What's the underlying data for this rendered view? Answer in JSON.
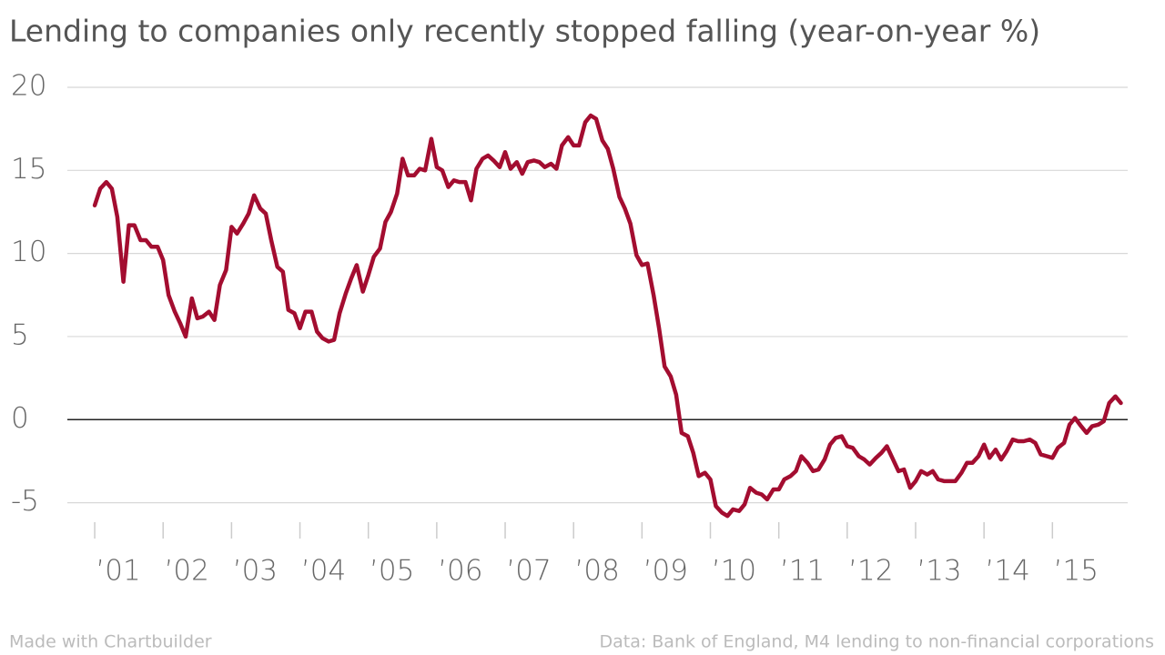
{
  "chart_data": {
    "type": "line",
    "title": "Lending to companies only recently stopped falling (year-on-year %)",
    "credit": "Made with Chartbuilder",
    "source": "Data: Bank of England, M4 lending to non-financial corporations",
    "x": [
      2001.0,
      2001.08,
      2001.17,
      2001.25,
      2001.33,
      2001.42,
      2001.5,
      2001.58,
      2001.67,
      2001.75,
      2001.83,
      2001.92,
      2002.0,
      2002.08,
      2002.17,
      2002.25,
      2002.33,
      2002.42,
      2002.5,
      2002.58,
      2002.67,
      2002.75,
      2002.83,
      2002.92,
      2003.0,
      2003.08,
      2003.17,
      2003.25,
      2003.33,
      2003.42,
      2003.5,
      2003.58,
      2003.67,
      2003.75,
      2003.83,
      2003.92,
      2004.0,
      2004.08,
      2004.17,
      2004.25,
      2004.33,
      2004.42,
      2004.5,
      2004.58,
      2004.67,
      2004.75,
      2004.83,
      2004.92,
      2005.0,
      2005.08,
      2005.17,
      2005.25,
      2005.33,
      2005.42,
      2005.5,
      2005.58,
      2005.67,
      2005.75,
      2005.83,
      2005.92,
      2006.0,
      2006.08,
      2006.17,
      2006.25,
      2006.33,
      2006.42,
      2006.5,
      2006.58,
      2006.67,
      2006.75,
      2006.83,
      2006.92,
      2007.0,
      2007.08,
      2007.17,
      2007.25,
      2007.33,
      2007.42,
      2007.5,
      2007.58,
      2007.67,
      2007.75,
      2007.83,
      2007.92,
      2008.0,
      2008.08,
      2008.17,
      2008.25,
      2008.33,
      2008.42,
      2008.5,
      2008.58,
      2008.67,
      2008.75,
      2008.83,
      2008.92,
      2009.0,
      2009.08,
      2009.17,
      2009.25,
      2009.33,
      2009.42,
      2009.5,
      2009.58,
      2009.67,
      2009.75,
      2009.83,
      2009.92,
      2010.0,
      2010.08,
      2010.17,
      2010.25,
      2010.33,
      2010.42,
      2010.5,
      2010.58,
      2010.67,
      2010.75,
      2010.83,
      2010.92,
      2011.0,
      2011.08,
      2011.17,
      2011.25,
      2011.33,
      2011.42,
      2011.5,
      2011.58,
      2011.67,
      2011.75,
      2011.83,
      2011.92,
      2012.0,
      2012.08,
      2012.17,
      2012.25,
      2012.33,
      2012.42,
      2012.5,
      2012.58,
      2012.67,
      2012.75,
      2012.83,
      2012.92,
      2013.0,
      2013.08,
      2013.17,
      2013.25,
      2013.33,
      2013.42,
      2013.5,
      2013.58,
      2013.67,
      2013.75,
      2013.83,
      2013.92,
      2014.0,
      2014.08,
      2014.17,
      2014.25,
      2014.33,
      2014.42,
      2014.5,
      2014.58,
      2014.67,
      2014.75,
      2014.83,
      2014.92,
      2015.0,
      2015.08,
      2015.17,
      2015.25,
      2015.33,
      2015.42,
      2015.5,
      2015.58,
      2015.67,
      2015.75,
      2015.83,
      2015.92,
      2016.0
    ],
    "series": [
      {
        "name": "M4 lending to non-financial corporations",
        "color": "#a30d30",
        "values": [
          12.9,
          13.9,
          14.3,
          13.9,
          12.2,
          8.3,
          11.7,
          11.7,
          10.8,
          10.8,
          10.4,
          10.4,
          9.6,
          7.5,
          6.5,
          5.8,
          5.0,
          7.3,
          6.1,
          6.2,
          6.5,
          6.0,
          8.1,
          9.0,
          11.6,
          11.2,
          11.8,
          12.4,
          13.5,
          12.7,
          12.4,
          10.8,
          9.2,
          8.9,
          6.6,
          6.4,
          5.5,
          6.5,
          6.5,
          5.3,
          4.9,
          4.7,
          4.8,
          6.4,
          7.6,
          8.5,
          9.3,
          7.7,
          8.7,
          9.8,
          10.3,
          11.9,
          12.5,
          13.6,
          15.7,
          14.7,
          14.7,
          15.1,
          15.0,
          16.9,
          15.2,
          15.0,
          14.0,
          14.4,
          14.3,
          14.3,
          13.2,
          15.1,
          15.7,
          15.9,
          15.6,
          15.2,
          16.1,
          15.1,
          15.5,
          14.8,
          15.5,
          15.6,
          15.5,
          15.2,
          15.4,
          15.1,
          16.5,
          17.0,
          16.5,
          16.5,
          17.9,
          18.3,
          18.1,
          16.8,
          16.3,
          15.1,
          13.4,
          12.7,
          11.8,
          9.9,
          9.3,
          9.4,
          7.5,
          5.5,
          3.2,
          2.6,
          1.5,
          -0.8,
          -1.0,
          -2.0,
          -3.4,
          -3.2,
          -3.6,
          -5.2,
          -5.6,
          -5.8,
          -5.4,
          -5.5,
          -5.1,
          -4.1,
          -4.4,
          -4.5,
          -4.8,
          -4.2,
          -4.2,
          -3.6,
          -3.4,
          -3.1,
          -2.2,
          -2.6,
          -3.1,
          -3.0,
          -2.4,
          -1.5,
          -1.1,
          -1.0,
          -1.6,
          -1.7,
          -2.2,
          -2.4,
          -2.7,
          -2.3,
          -2.0,
          -1.6,
          -2.4,
          -3.1,
          -3.0,
          -4.1,
          -3.7,
          -3.1,
          -3.3,
          -3.1,
          -3.6,
          -3.7,
          -3.7,
          -3.7,
          -3.2,
          -2.6,
          -2.6,
          -2.2,
          -1.5,
          -2.3,
          -1.8,
          -2.4,
          -1.9,
          -1.2,
          -1.3,
          -1.3,
          -1.2,
          -1.4,
          -2.1,
          -2.2,
          -2.3,
          -1.7,
          -1.4,
          -0.3,
          0.1,
          -0.4,
          -0.8,
          -0.4,
          -0.3,
          -0.1,
          1.0,
          1.4,
          1.0
        ]
      }
    ],
    "xlim": [
      2000.6,
      2016.1
    ],
    "xticks": [
      {
        "value": 2001,
        "label": "’01"
      },
      {
        "value": 2002,
        "label": "’02"
      },
      {
        "value": 2003,
        "label": "’03"
      },
      {
        "value": 2004,
        "label": "’04"
      },
      {
        "value": 2005,
        "label": "’05"
      },
      {
        "value": 2006,
        "label": "’06"
      },
      {
        "value": 2007,
        "label": "’07"
      },
      {
        "value": 2008,
        "label": "’08"
      },
      {
        "value": 2009,
        "label": "’09"
      },
      {
        "value": 2010,
        "label": "’10"
      },
      {
        "value": 2011,
        "label": "’11"
      },
      {
        "value": 2012,
        "label": "’12"
      },
      {
        "value": 2013,
        "label": "’13"
      },
      {
        "value": 2014,
        "label": "’14"
      },
      {
        "value": 2015,
        "label": "’15"
      }
    ],
    "ylim": [
      -6.5,
      20
    ],
    "yticks": [
      20,
      15,
      10,
      5,
      0,
      -5
    ],
    "grid": true
  }
}
